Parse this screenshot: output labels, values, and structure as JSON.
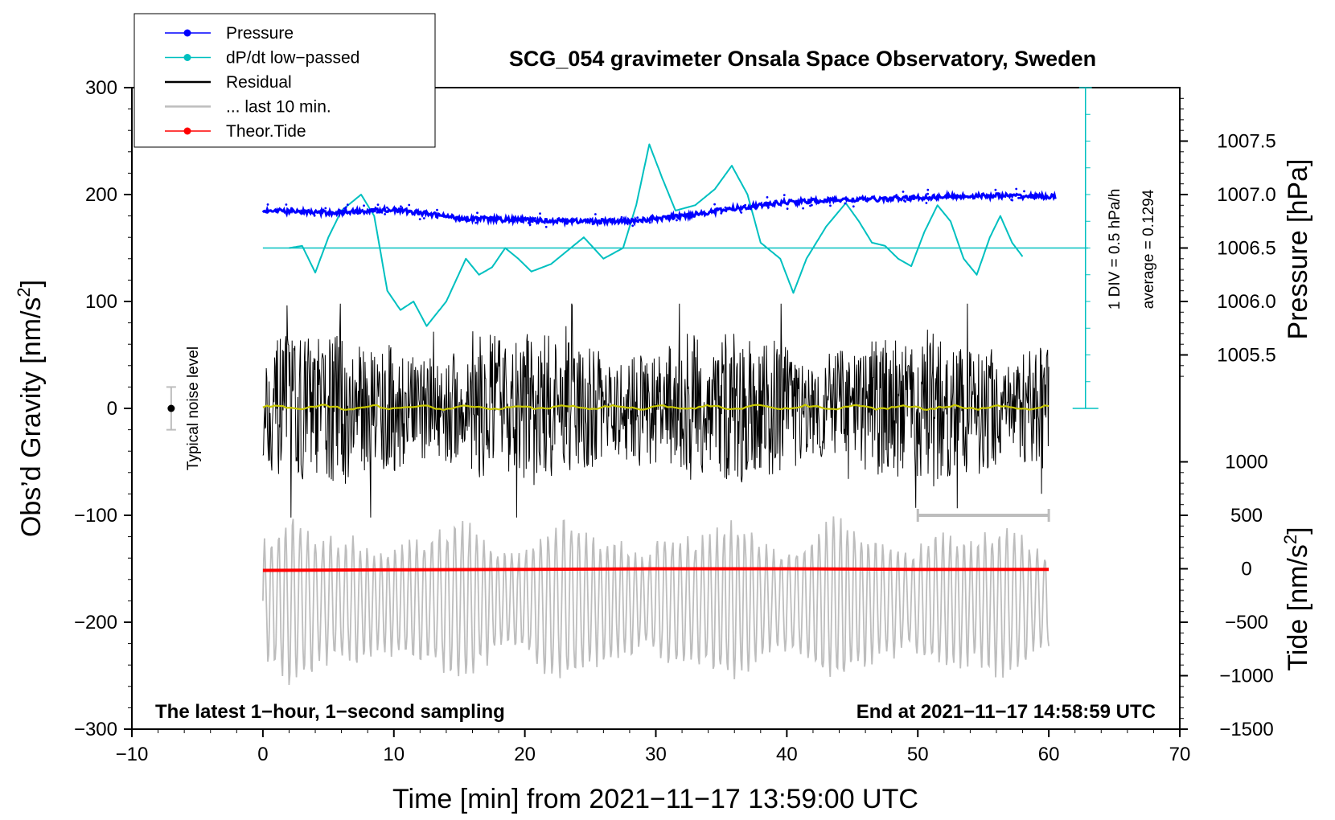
{
  "chart_data": {
    "type": "line",
    "title": "SCG_054 gravimeter Onsala Space Observatory, Sweden",
    "xlabel": "Time [min] from 2021−11−17 13:59:00 UTC",
    "ylabel_left_main": "Obs’d Gravity [nm/s",
    "ylabel_left_sup": "2",
    "ylabel_left_end": "]",
    "ylabel_right_pressure": "Pressure [hPa]",
    "ylabel_right_tide_main": "Tide [nm/s",
    "ylabel_right_tide_sup": "2",
    "ylabel_right_tide_end": "]",
    "xlim": [
      -10,
      70
    ],
    "ylim_gravity": [
      -300,
      300
    ],
    "xticks": [
      -10,
      0,
      10,
      20,
      30,
      40,
      50,
      60,
      70
    ],
    "xtick_labels": [
      "−10",
      "0",
      "10",
      "20",
      "30",
      "40",
      "50",
      "60",
      "70"
    ],
    "yticks_gravity": [
      300,
      200,
      100,
      0,
      -100,
      -200,
      -300
    ],
    "ytick_labels_gravity": [
      "300",
      "200",
      "100",
      "0",
      "−100",
      "−200",
      "−300"
    ],
    "yticks_pressure": [
      1007.5,
      1007.0,
      1006.5,
      1006.0,
      1005.5
    ],
    "ytick_labels_pressure": [
      "1007.5",
      "1007.0",
      "1006.5",
      "1006.0",
      "1005.5"
    ],
    "yticks_tide": [
      1000,
      500,
      0,
      -500,
      -1000,
      -1500
    ],
    "ytick_labels_tide": [
      "1000",
      "500",
      "0",
      "−500",
      "−1000",
      "−1500"
    ],
    "legend": [
      {
        "label": "Pressure",
        "color": "#0000ff",
        "marker": true
      },
      {
        "label": "dP/dt low−passed",
        "color": "#00c0c0",
        "marker": true
      },
      {
        "label": "Residual",
        "color": "#000000",
        "marker": false
      },
      {
        "label": "... last 10 min.",
        "color": "#bdbdbd",
        "marker": false
      },
      {
        "label": "Theor.Tide",
        "color": "#ff0000",
        "marker": true
      }
    ],
    "legend_position": "top-left",
    "annotations": {
      "noise_label": "Typical noise level",
      "div_label": "1 DIV = 0.5 hPa/h",
      "average_label": "average = 0.1294",
      "footer_left": "The latest 1−hour, 1−second sampling",
      "footer_right": "End at 2021−11−17 14:58:59 UTC"
    },
    "colors": {
      "pressure": "#0000ff",
      "dpdt": "#00c0c0",
      "residual": "#000000",
      "residual_mean": "#c8c800",
      "last10": "#bdbdbd",
      "tide": "#ff0000"
    },
    "series": [
      {
        "name": "Pressure",
        "unit": "hPa",
        "x": [
          0,
          5,
          10,
          15,
          20,
          25,
          28,
          32,
          36,
          40,
          44,
          48,
          52,
          56,
          60
        ],
        "values": [
          1006.85,
          1006.83,
          1006.86,
          1006.78,
          1006.76,
          1006.75,
          1006.75,
          1006.8,
          1006.87,
          1006.93,
          1006.95,
          1006.96,
          1006.98,
          1006.99,
          1006.98
        ]
      },
      {
        "name": "dP/dt low-passed",
        "unit": "gravity-axis units (reference line at 150)",
        "x": [
          2,
          3,
          4,
          5,
          6,
          7.5,
          8.5,
          9.5,
          10.5,
          11.5,
          12.5,
          14,
          15.5,
          16.5,
          17.5,
          18.5,
          19.5,
          20.5,
          22,
          24.5,
          26,
          27.5,
          28.5,
          29.5,
          30.5,
          31.5,
          33,
          34.5,
          35.8,
          37,
          38,
          39.5,
          40.5,
          41.5,
          43,
          44.5,
          45.5,
          46.5,
          47.5,
          48.5,
          49.5,
          50.5,
          51.5,
          52.5,
          53.5,
          54.5,
          55.5,
          56.3,
          57.2,
          58
        ],
        "values": [
          150,
          152,
          127,
          160,
          185,
          200,
          180,
          110,
          92,
          100,
          77,
          100,
          140,
          125,
          132,
          150,
          140,
          128,
          135,
          160,
          140,
          150,
          190,
          247,
          215,
          185,
          190,
          205,
          227,
          200,
          155,
          140,
          108,
          140,
          170,
          192,
          175,
          155,
          152,
          140,
          133,
          165,
          190,
          175,
          140,
          125,
          160,
          180,
          155,
          142
        ]
      },
      {
        "name": "Residual",
        "unit": "nm/s2",
        "x_range": [
          0,
          60
        ],
        "range_approx": [
          -102,
          100
        ],
        "mean": 0
      },
      {
        "name": "... last 10 min.",
        "unit": "nm/s2",
        "x_range": [
          0,
          60
        ],
        "center": -180,
        "range_approx": [
          -267,
          -92
        ]
      },
      {
        "name": "Theor.Tide",
        "unit": "nm/s2 (tide axis)",
        "x": [
          0,
          10,
          20,
          30,
          40,
          50,
          60
        ],
        "values": [
          -15,
          -10,
          -5,
          0,
          0,
          -5,
          -5
        ]
      }
    ],
    "noise_bar": {
      "x": -7,
      "center": 0,
      "half_range": 20
    },
    "last10_bar": {
      "x_start": 50,
      "x_end": 60,
      "y": -100
    }
  }
}
